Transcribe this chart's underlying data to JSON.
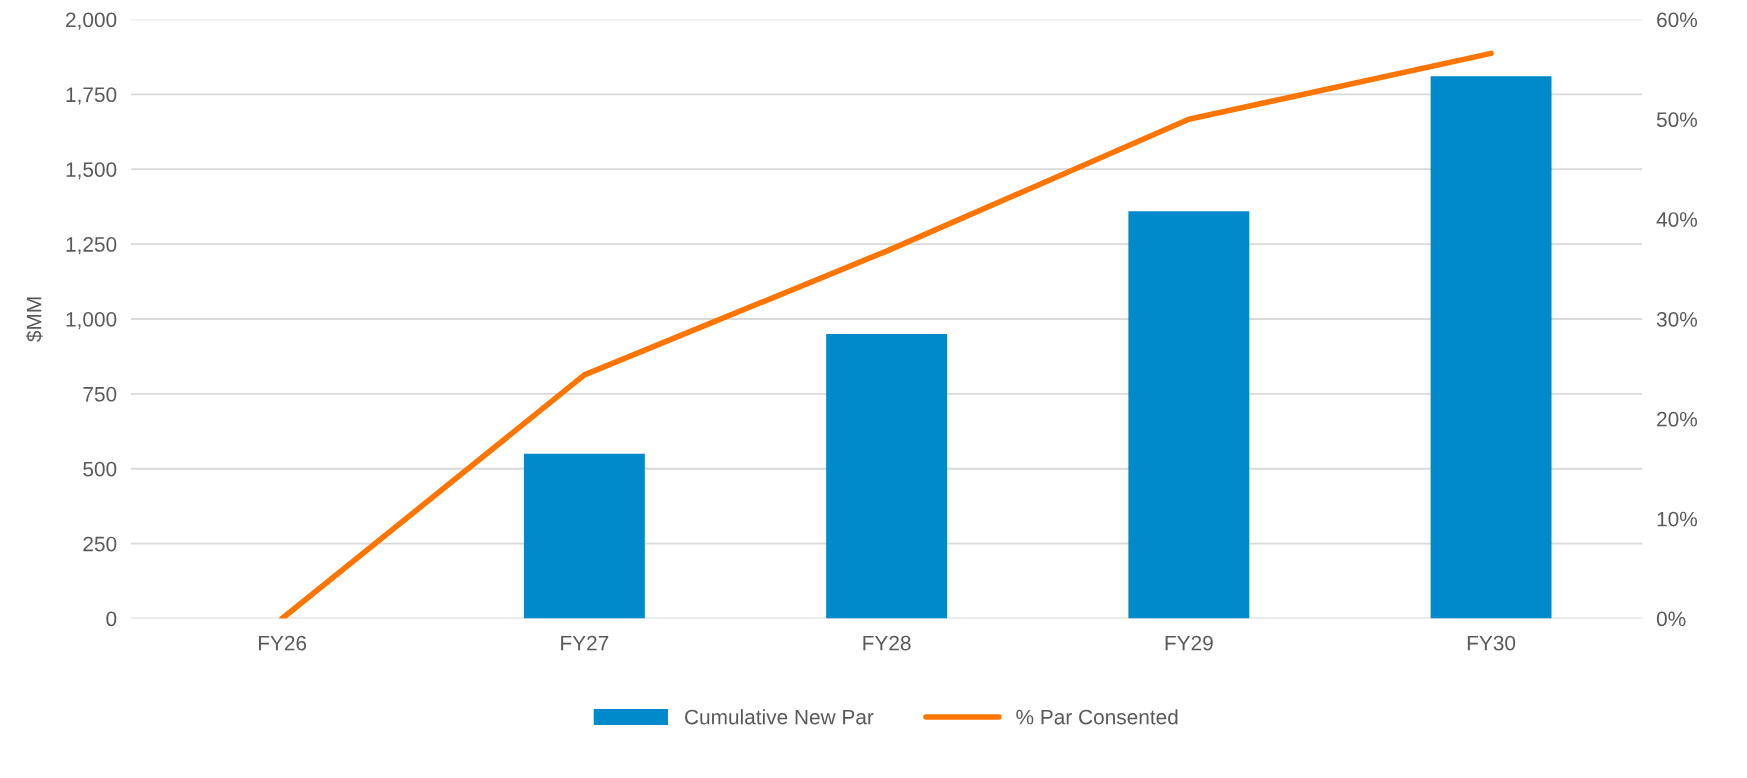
{
  "chart_data": {
    "type": "bar",
    "ylabel": "$MM",
    "categories": [
      "FY26",
      "FY27",
      "FY28",
      "FY29",
      "FY30"
    ],
    "series": [
      {
        "name": "Cumulative New Par",
        "color": "#0089cb",
        "values": [
          0,
          550,
          950,
          1360,
          1810
        ]
      },
      {
        "name": "% Par Consented",
        "type": "line",
        "axis": "y2",
        "color": "#ff7500",
        "values": [
          0,
          24.4,
          36.8,
          50.0,
          56.6
        ]
      }
    ],
    "ylim": [
      0,
      2000
    ],
    "yticks": [
      {
        "value": 0,
        "label": "0"
      },
      {
        "value": 250,
        "label": "250"
      },
      {
        "value": 500,
        "label": "500"
      },
      {
        "value": 750,
        "label": "750"
      },
      {
        "value": 1000,
        "label": "1,000"
      },
      {
        "value": 1250,
        "label": "1,250"
      },
      {
        "value": 1500,
        "label": "1,500"
      },
      {
        "value": 1750,
        "label": "1,750"
      },
      {
        "value": 2000,
        "label": "2,000"
      }
    ],
    "y2lim": [
      0,
      60
    ],
    "y2ticks": [
      {
        "value": 0,
        "label": "0%"
      },
      {
        "value": 10,
        "label": "10%"
      },
      {
        "value": 20,
        "label": "20%"
      },
      {
        "value": 30,
        "label": "30%"
      },
      {
        "value": 40,
        "label": "40%"
      },
      {
        "value": 50,
        "label": "50%"
      },
      {
        "value": 60,
        "label": "60%"
      }
    ],
    "grid": "y",
    "legend": "bottom",
    "marker": "none",
    "line_style": "solid"
  }
}
